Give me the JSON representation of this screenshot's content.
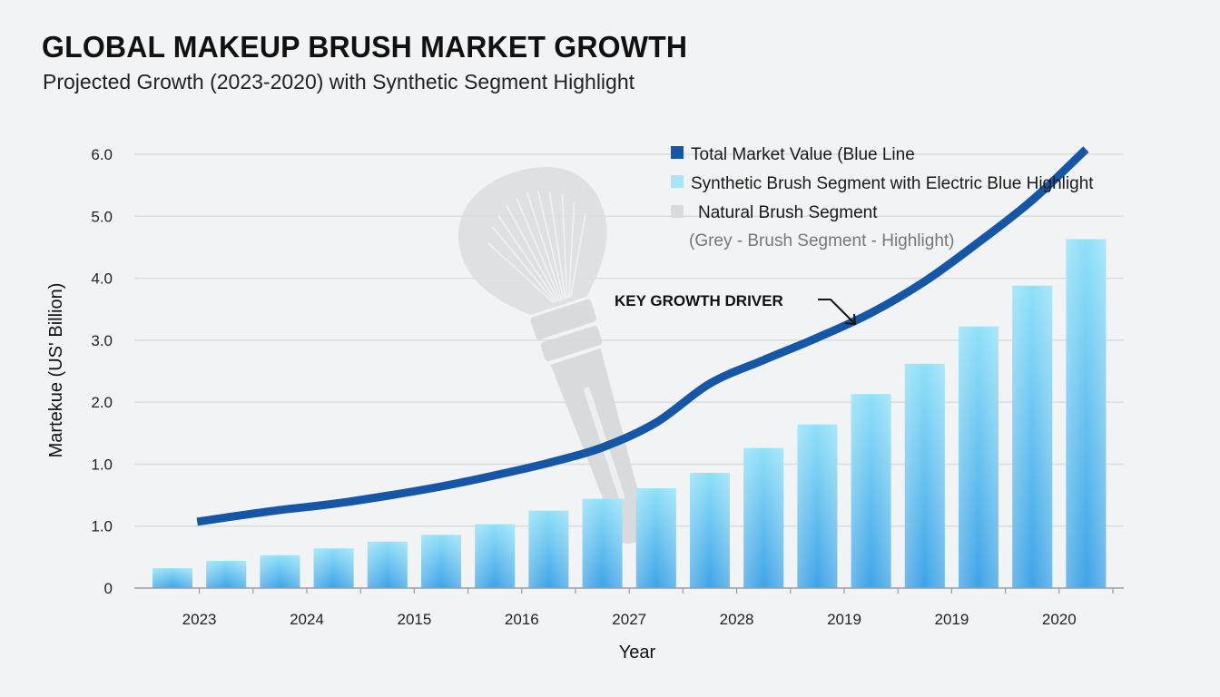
{
  "header": {
    "title": "GLOBAL MAKEUP BRUSH MARKET GROWTH",
    "subtitle": "Projected Growth (2023-2020) with Synthetic Segment Highlight"
  },
  "legend": {
    "items": [
      {
        "label": "Total Market Value (Blue Line",
        "color": "#1557a6"
      },
      {
        "label": "Synthetic Brush Segment with Electric Blue Highlight",
        "color": "#a8e6f7"
      },
      {
        "label": "Natural Brush Segment",
        "color": "#d8dadc"
      }
    ],
    "note": "(Grey - Brush Segment - Highlight)"
  },
  "annotation": {
    "text": "KEY GROWTH DRIVER",
    "icon": "arrow-down-right-icon"
  },
  "background_icon": "makeup-brush-icon",
  "chart_data": {
    "type": "bar+line",
    "title": "GLOBAL MAKEUP BRUSH MARKET GROWTH",
    "subtitle": "Projected Growth (2023-2020) with Synthetic Segment Highlight",
    "xlabel": "Year",
    "ylabel": "Martekue (US' Billion)",
    "yticks": [
      {
        "pos": 0,
        "label": "0"
      },
      {
        "pos": 1,
        "label": "1.0"
      },
      {
        "pos": 2,
        "label": "1.0"
      },
      {
        "pos": 3,
        "label": "2.0"
      },
      {
        "pos": 4,
        "label": "3.0"
      },
      {
        "pos": 5,
        "label": "4.0"
      },
      {
        "pos": 6,
        "label": "5.0"
      },
      {
        "pos": 7,
        "label": "6.0"
      }
    ],
    "ylim": [
      0,
      7
    ],
    "grid": true,
    "legend_position": "top-right",
    "n_bars": 18,
    "xtick_labels": [
      {
        "bar_boundary": 1,
        "label": "2023"
      },
      {
        "bar_boundary": 3,
        "label": "2024"
      },
      {
        "bar_boundary": 5,
        "label": "2015"
      },
      {
        "bar_boundary": 7,
        "label": "2016"
      },
      {
        "bar_boundary": 9,
        "label": "2027"
      },
      {
        "bar_boundary": 11,
        "label": "2028"
      },
      {
        "bar_boundary": 13,
        "label": "2019"
      },
      {
        "bar_boundary": 15,
        "label": "2019"
      },
      {
        "bar_boundary": 17,
        "label": "2020"
      }
    ],
    "series": [
      {
        "name": "Synthetic Brush Segment with Electric Blue Highlight",
        "type": "bar",
        "color_top": "#8fe0f8",
        "color_bottom": "#3ea3e6",
        "values": [
          0.32,
          0.44,
          0.53,
          0.64,
          0.75,
          0.86,
          1.03,
          1.25,
          1.44,
          1.61,
          1.86,
          2.26,
          2.64,
          3.13,
          3.62,
          4.22,
          4.88,
          5.63
        ]
      },
      {
        "name": "Total Market Value (Blue Line",
        "type": "line",
        "color": "#1557a6",
        "points": [
          [
            0.46,
            1.07
          ],
          [
            1,
            1.14
          ],
          [
            2,
            1.26
          ],
          [
            3,
            1.36
          ],
          [
            4,
            1.49
          ],
          [
            5,
            1.64
          ],
          [
            6,
            1.82
          ],
          [
            7,
            2.02
          ],
          [
            8,
            2.27
          ],
          [
            9,
            2.67
          ],
          [
            10,
            3.3
          ],
          [
            11,
            3.68
          ],
          [
            12,
            4.04
          ],
          [
            13,
            4.44
          ],
          [
            14,
            4.95
          ],
          [
            15,
            5.58
          ],
          [
            16,
            6.26
          ],
          [
            17,
            7.08
          ]
        ]
      }
    ]
  }
}
